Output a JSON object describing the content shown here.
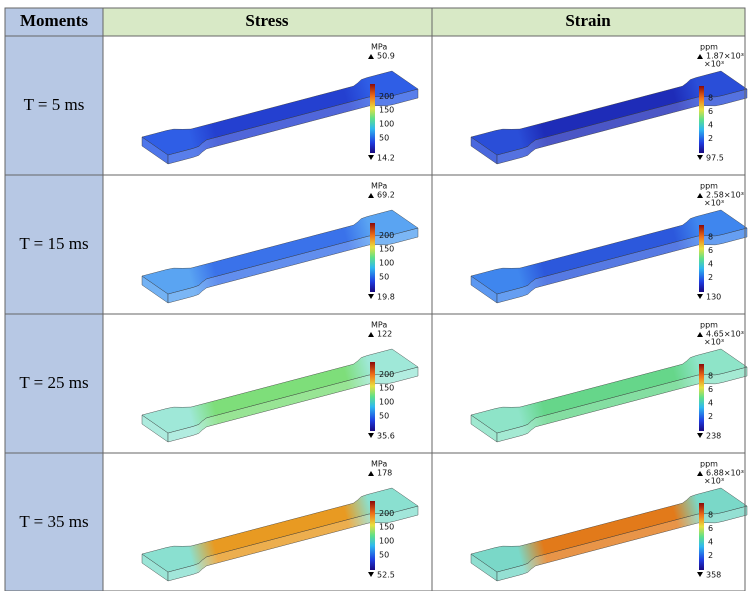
{
  "header": [
    "Moments",
    "Stress",
    "Strain"
  ],
  "rows": [
    {
      "moment": "T = 5 ms",
      "stress": {
        "unit": "MPa",
        "max": 50.9,
        "ticks": [
          200,
          150,
          100,
          50
        ],
        "min": 14.2
      },
      "strain": {
        "unit": "ppm",
        "max": "1.87×10³",
        "multiplier": "×10³",
        "ticks": [
          8,
          6,
          4,
          2
        ],
        "min": 97.5
      }
    },
    {
      "moment": "T = 15 ms",
      "stress": {
        "unit": "MPa",
        "max": 69.2,
        "ticks": [
          200,
          150,
          100,
          50
        ],
        "min": 19.8
      },
      "strain": {
        "unit": "ppm",
        "max": "2.58×10³",
        "multiplier": "×10³",
        "ticks": [
          8,
          6,
          4,
          2
        ],
        "min": 130
      }
    },
    {
      "moment": "T = 25 ms",
      "stress": {
        "unit": "MPa",
        "max": 122,
        "ticks": [
          200,
          150,
          100,
          50
        ],
        "min": 35.6
      },
      "strain": {
        "unit": "ppm",
        "max": "4.65×10³",
        "multiplier": "×10³",
        "ticks": [
          8,
          6,
          4,
          2
        ],
        "min": 238
      }
    },
    {
      "moment": "T = 35 ms",
      "stress": {
        "unit": "MPa",
        "max": 178,
        "ticks": [
          200,
          150,
          100,
          50
        ],
        "min": 52.5
      },
      "strain": {
        "unit": "ppm",
        "max": "6.88×10³",
        "multiplier": "×10³",
        "ticks": [
          8,
          6,
          4,
          2
        ],
        "min": 358
      }
    }
  ]
}
